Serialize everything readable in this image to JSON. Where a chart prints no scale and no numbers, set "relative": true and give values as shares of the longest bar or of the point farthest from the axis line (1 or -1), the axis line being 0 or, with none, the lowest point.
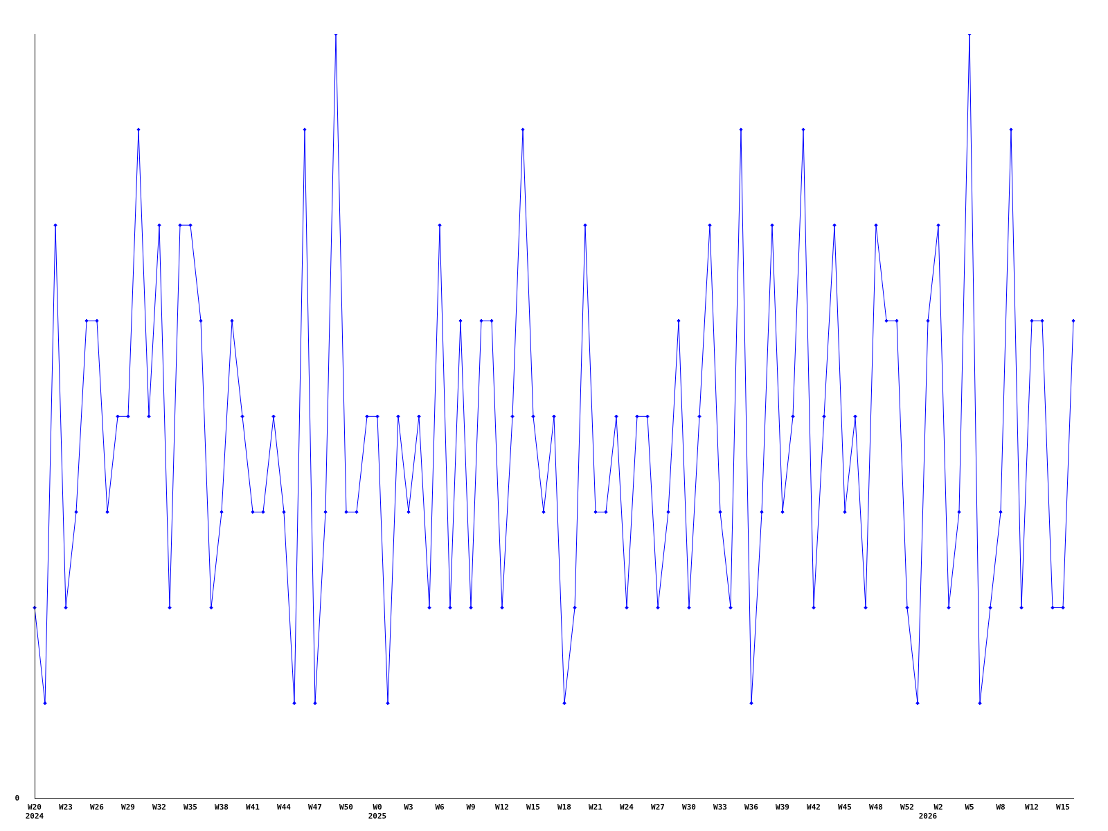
{
  "chart_data": {
    "type": "line",
    "relative": true,
    "color": "#0000ff",
    "marker": "diamond",
    "grid": false,
    "legend": false,
    "annotations": [
      "0"
    ],
    "categories": [
      "W20\n2024",
      null,
      null,
      "W23",
      null,
      null,
      "W26",
      null,
      null,
      "W29",
      null,
      null,
      "W32",
      null,
      null,
      "W35",
      null,
      null,
      "W38",
      null,
      null,
      "W41",
      null,
      null,
      "W44",
      null,
      null,
      "W47",
      null,
      null,
      "W50",
      null,
      null,
      "W0\n2025",
      null,
      null,
      "W3",
      null,
      null,
      "W6",
      null,
      null,
      "W9",
      null,
      null,
      "W12",
      null,
      null,
      "W15",
      null,
      null,
      "W18",
      null,
      null,
      "W21",
      null,
      null,
      "W24",
      null,
      null,
      "W27",
      null,
      null,
      "W30",
      null,
      null,
      "W33",
      null,
      null,
      "W36",
      null,
      null,
      "W39",
      null,
      null,
      "W42",
      null,
      null,
      "W45",
      null,
      null,
      "W48",
      null,
      null,
      "W52",
      null,
      "\n2026",
      "W2",
      null,
      null,
      "W5",
      null,
      null,
      "W8",
      null,
      null,
      "W12",
      null,
      null,
      "W15",
      null
    ],
    "values": [
      0.25,
      0.125,
      0.75,
      0.25,
      0.375,
      0.625,
      0.625,
      0.375,
      0.5,
      0.5,
      0.875,
      0.5,
      0.75,
      0.25,
      0.75,
      0.75,
      0.625,
      0.25,
      0.375,
      0.625,
      0.5,
      0.375,
      0.375,
      0.5,
      0.375,
      0.125,
      0.875,
      0.125,
      0.375,
      1,
      0.375,
      0.375,
      0.5,
      0.5,
      0.125,
      0.5,
      0.375,
      0.5,
      0.25,
      0.75,
      0.25,
      0.625,
      0.25,
      0.625,
      0.625,
      0.25,
      0.5,
      0.875,
      0.5,
      0.375,
      0.5,
      0.125,
      0.25,
      0.75,
      0.375,
      0.375,
      0.5,
      0.25,
      0.5,
      0.5,
      0.25,
      0.375,
      0.625,
      0.25,
      0.5,
      0.75,
      0.375,
      0.25,
      0.875,
      0.125,
      0.375,
      0.75,
      0.375,
      0.5,
      0.875,
      0.25,
      0.5,
      0.75,
      0.375,
      0.5,
      0.25,
      0.75,
      0.625,
      0.625,
      0.25,
      0.125,
      0.625,
      0.75,
      0.25,
      0.375,
      1,
      0.125,
      0.25,
      0.375,
      0.875,
      0.25,
      0.625,
      0.625,
      0.25,
      0.25,
      0.625
    ]
  }
}
